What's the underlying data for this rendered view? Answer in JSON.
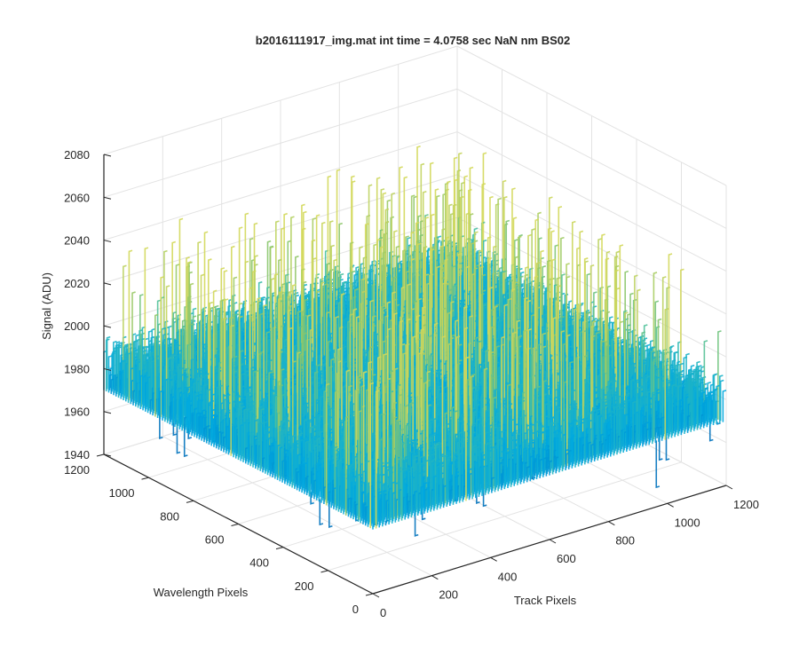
{
  "chart_data": {
    "type": "surface",
    "title": "b2016111917_img.mat int time = 4.0758 sec  NaN nm BS02",
    "xlabel": "Track Pixels",
    "ylabel": "Wavelength Pixels",
    "zlabel": "Signal (ADU)",
    "xlim": [
      0,
      1200
    ],
    "ylim": [
      0,
      1200
    ],
    "zlim": [
      1940,
      2080
    ],
    "xticks": [
      "0",
      "200",
      "400",
      "600",
      "800",
      "1000",
      "1200"
    ],
    "yticks": [
      "0",
      "200",
      "400",
      "600",
      "800",
      "1000",
      "1200"
    ],
    "zticks": [
      "1940",
      "1960",
      "1980",
      "2000",
      "2020",
      "2040",
      "2060",
      "2080"
    ],
    "grid": true,
    "colormap": "parula",
    "colors": {
      "low": "#0072bd",
      "mid_low": "#00a9e0",
      "mid": "#3fbfa8",
      "mid_high": "#8cc66a",
      "high": "#d3d85a",
      "axis": "#262626",
      "grid": "#e3e3e3"
    },
    "data_summary": {
      "baseline_signal_approx": 1985,
      "noise_peak_max_approx": 2068,
      "noise_trough_min_approx": 1946
    }
  }
}
